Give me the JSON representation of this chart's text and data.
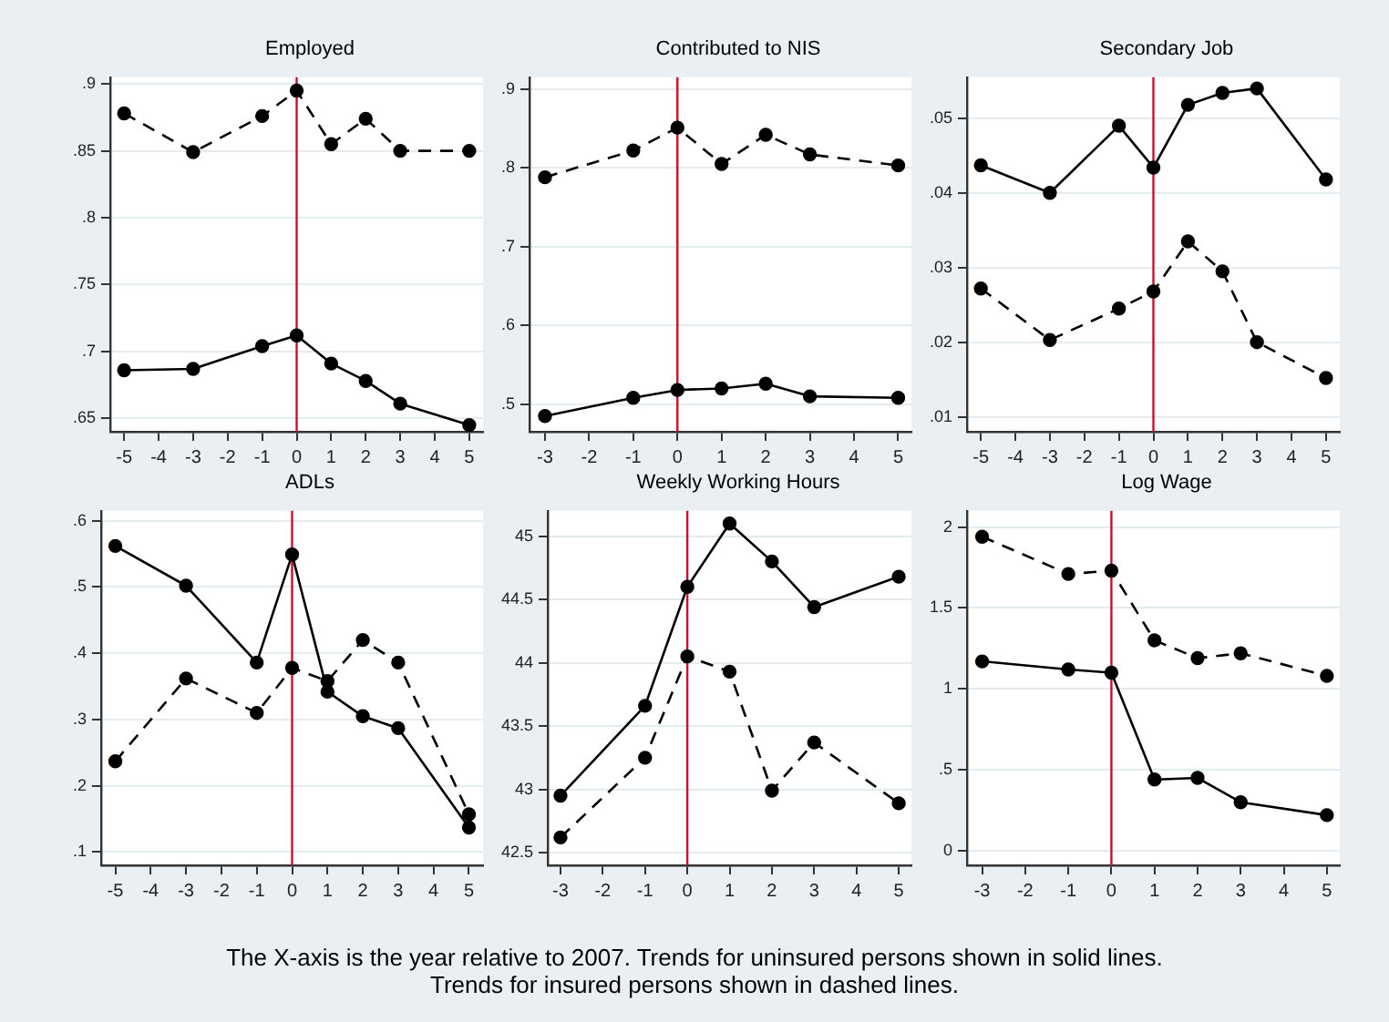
{
  "chart_data": [
    {
      "type": "line",
      "title": "Employed",
      "x": [
        -5,
        -3,
        -1,
        0,
        1,
        2,
        3,
        5
      ],
      "xlim": [
        -5.4,
        5.4
      ],
      "xticks": [
        -5,
        -4,
        -3,
        -2,
        -1,
        0,
        1,
        2,
        3,
        4,
        5
      ],
      "ylim": [
        0.64,
        0.905
      ],
      "yticks": [
        {
          "value": 0.65,
          "label": ".65"
        },
        {
          "value": 0.7,
          "label": ".7"
        },
        {
          "value": 0.75,
          "label": ".75"
        },
        {
          "value": 0.8,
          "label": ".8"
        },
        {
          "value": 0.85,
          "label": ".85"
        },
        {
          "value": 0.9,
          "label": ".9"
        }
      ],
      "series": [
        {
          "color": "#000000",
          "line_style": "solid",
          "values": [
            0.686,
            0.687,
            0.704,
            0.712,
            0.691,
            0.678,
            0.661,
            0.645
          ]
        },
        {
          "color": "#000000",
          "line_style": "dashed",
          "values": [
            0.878,
            0.849,
            0.876,
            0.895,
            0.855,
            0.874,
            0.85,
            0.85
          ]
        }
      ],
      "ref_lines": [
        {
          "axis": "x",
          "value": 0,
          "color": "#c8102e"
        }
      ],
      "grid": "y",
      "legend": false,
      "marker": "circle",
      "annotations": [
        "The X-axis is the year relative to 2007. Trends for uninsured persons shown in solid lines.",
        "Trends for insured persons shown in dashed lines."
      ]
    },
    {
      "type": "line",
      "title": "Contributed to NIS",
      "x": [
        -3,
        -1,
        0,
        1,
        2,
        3,
        5
      ],
      "xlim": [
        -3.35,
        5.3
      ],
      "xticks": [
        -3,
        -2,
        -1,
        0,
        1,
        2,
        3,
        4,
        5
      ],
      "ylim": [
        0.465,
        0.915
      ],
      "yticks": [
        {
          "value": 0.5,
          "label": ".5"
        },
        {
          "value": 0.6,
          "label": ".6"
        },
        {
          "value": 0.7,
          "label": ".7"
        },
        {
          "value": 0.8,
          "label": ".8"
        },
        {
          "value": 0.9,
          "label": ".9"
        }
      ],
      "series": [
        {
          "color": "#000000",
          "line_style": "solid",
          "values": [
            0.485,
            0.508,
            0.518,
            0.52,
            0.526,
            0.51,
            0.508
          ]
        },
        {
          "color": "#000000",
          "line_style": "dashed",
          "values": [
            0.788,
            0.822,
            0.851,
            0.805,
            0.842,
            0.817,
            0.803
          ]
        }
      ],
      "ref_lines": [
        {
          "axis": "x",
          "value": 0,
          "color": "#c8102e"
        }
      ],
      "grid": "y",
      "legend": false,
      "marker": "circle"
    },
    {
      "type": "line",
      "title": "Secondary Job",
      "x": [
        -5,
        -3,
        -1,
        0,
        1,
        2,
        3,
        5
      ],
      "xlim": [
        -5.4,
        5.4
      ],
      "xticks": [
        -5,
        -4,
        -3,
        -2,
        -1,
        0,
        1,
        2,
        3,
        4,
        5
      ],
      "ylim": [
        0.008,
        0.0555
      ],
      "yticks": [
        {
          "value": 0.01,
          "label": ".01"
        },
        {
          "value": 0.02,
          "label": ".02"
        },
        {
          "value": 0.03,
          "label": ".03"
        },
        {
          "value": 0.04,
          "label": ".04"
        },
        {
          "value": 0.05,
          "label": ".05"
        }
      ],
      "series": [
        {
          "color": "#000000",
          "line_style": "solid",
          "values": [
            0.0437,
            0.04,
            0.049,
            0.0434,
            0.0518,
            0.0534,
            0.054,
            0.0418
          ]
        },
        {
          "color": "#000000",
          "line_style": "dashed",
          "values": [
            0.0272,
            0.0203,
            0.0245,
            0.0268,
            0.0335,
            0.0295,
            0.02,
            0.0152
          ]
        }
      ],
      "ref_lines": [
        {
          "axis": "x",
          "value": 0,
          "color": "#c8102e"
        }
      ],
      "grid": "y",
      "legend": false,
      "marker": "circle"
    },
    {
      "type": "line",
      "title": "ADLs",
      "x": [
        -5,
        -3,
        -1,
        0,
        1,
        2,
        3,
        5
      ],
      "xlim": [
        -5.4,
        5.4
      ],
      "xticks": [
        -5,
        -4,
        -3,
        -2,
        -1,
        0,
        1,
        2,
        3,
        4,
        5
      ],
      "ylim": [
        0.08,
        0.615
      ],
      "yticks": [
        {
          "value": 0.1,
          "label": ".1"
        },
        {
          "value": 0.2,
          "label": ".2"
        },
        {
          "value": 0.3,
          "label": ".3"
        },
        {
          "value": 0.4,
          "label": ".4"
        },
        {
          "value": 0.5,
          "label": ".5"
        },
        {
          "value": 0.6,
          "label": ".6"
        }
      ],
      "series": [
        {
          "color": "#000000",
          "line_style": "solid",
          "values": [
            0.562,
            0.502,
            0.386,
            0.549,
            0.342,
            0.305,
            0.287,
            0.137
          ]
        },
        {
          "color": "#000000",
          "line_style": "dashed",
          "values": [
            0.237,
            0.362,
            0.31,
            0.378,
            0.358,
            0.42,
            0.386,
            0.157
          ]
        }
      ],
      "ref_lines": [
        {
          "axis": "x",
          "value": 0,
          "color": "#c8102e"
        }
      ],
      "grid": "y",
      "legend": false,
      "marker": "circle"
    },
    {
      "type": "line",
      "title": "Weekly Working Hours",
      "x": [
        -3,
        -1,
        0,
        1,
        2,
        3,
        5
      ],
      "xlim": [
        -3.3,
        5.3
      ],
      "xticks": [
        -3,
        -2,
        -1,
        0,
        1,
        2,
        3,
        4,
        5
      ],
      "ylim": [
        42.4,
        45.2
      ],
      "yticks": [
        {
          "value": 42.5,
          "label": "42.5"
        },
        43,
        {
          "value": 43.5,
          "label": "43.5"
        },
        44,
        {
          "value": 44.5,
          "label": "44.5"
        },
        45
      ],
      "series": [
        {
          "color": "#000000",
          "line_style": "solid",
          "values": [
            42.95,
            43.66,
            44.6,
            45.1,
            44.8,
            44.44,
            44.68
          ]
        },
        {
          "color": "#000000",
          "line_style": "dashed",
          "values": [
            42.62,
            43.25,
            44.05,
            43.93,
            42.99,
            43.37,
            42.89
          ]
        }
      ],
      "ref_lines": [
        {
          "axis": "x",
          "value": 0,
          "color": "#c8102e"
        }
      ],
      "grid": "y",
      "legend": false,
      "marker": "circle"
    },
    {
      "type": "line",
      "title": "Log Wage",
      "x": [
        -3,
        -1,
        0,
        1,
        2,
        3,
        5
      ],
      "xlim": [
        -3.35,
        5.3
      ],
      "xticks": [
        -3,
        -2,
        -1,
        0,
        1,
        2,
        3,
        4,
        5
      ],
      "ylim": [
        -0.09,
        2.1
      ],
      "yticks": [
        0,
        {
          "value": 0.5,
          "label": ".5"
        },
        1,
        {
          "value": 1.5,
          "label": "1.5"
        },
        2
      ],
      "series": [
        {
          "color": "#000000",
          "line_style": "solid",
          "values": [
            1.17,
            1.12,
            1.1,
            0.44,
            0.45,
            0.3,
            0.22
          ]
        },
        {
          "color": "#000000",
          "line_style": "dashed",
          "values": [
            1.94,
            1.71,
            1.73,
            1.3,
            1.19,
            1.22,
            1.08
          ]
        }
      ],
      "ref_lines": [
        {
          "axis": "x",
          "value": 0,
          "color": "#c8102e"
        }
      ],
      "grid": "y",
      "legend": false,
      "marker": "circle"
    }
  ]
}
